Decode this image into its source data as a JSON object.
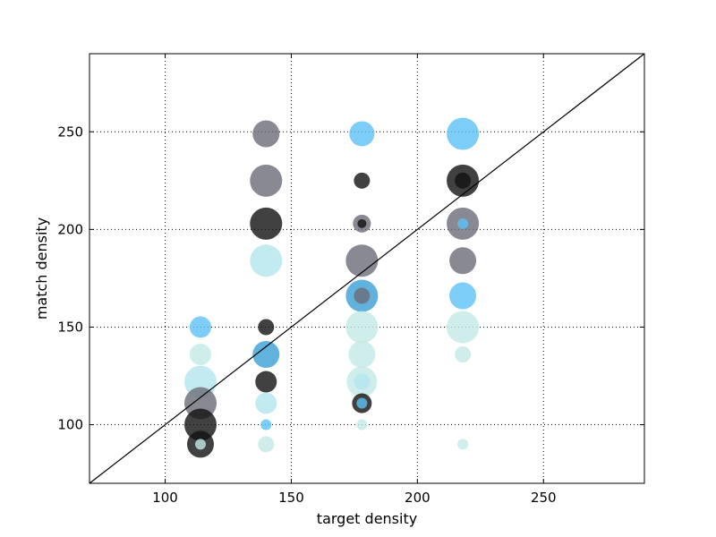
{
  "chart_data": {
    "type": "scatter",
    "title": "",
    "xlabel": "target density",
    "ylabel": "match density",
    "xlim": [
      70,
      290
    ],
    "ylim": [
      70,
      290
    ],
    "xticks": [
      100,
      150,
      200,
      250
    ],
    "yticks": [
      100,
      150,
      200,
      250
    ],
    "xtick_labels": [
      "100",
      "150",
      "200",
      "250"
    ],
    "ytick_labels": [
      "100",
      "150",
      "200",
      "250"
    ],
    "grid": true,
    "reference_line": {
      "from": [
        70,
        70
      ],
      "to": [
        290,
        290
      ],
      "color": "#000000"
    },
    "colors": {
      "sky": "#5bc0f5",
      "pale": "#b3e6ee",
      "mint": "#c2e8e6",
      "gray": "#6b6b78",
      "black": "#111111",
      "steel": "#3a9fd4"
    },
    "points": [
      {
        "x": 114,
        "y": 150,
        "size": 12,
        "color": "sky"
      },
      {
        "x": 114,
        "y": 136,
        "size": 12,
        "color": "mint"
      },
      {
        "x": 114,
        "y": 122,
        "size": 18,
        "color": "pale"
      },
      {
        "x": 114,
        "y": 111,
        "size": 18,
        "color": "gray"
      },
      {
        "x": 114,
        "y": 100,
        "size": 18,
        "color": "black"
      },
      {
        "x": 114,
        "y": 90,
        "size": 15,
        "color": "black"
      },
      {
        "x": 114,
        "y": 90,
        "size": 6,
        "color": "mint"
      },
      {
        "x": 140,
        "y": 249,
        "size": 15,
        "color": "gray"
      },
      {
        "x": 140,
        "y": 225,
        "size": 18,
        "color": "gray"
      },
      {
        "x": 140,
        "y": 203,
        "size": 18,
        "color": "black"
      },
      {
        "x": 140,
        "y": 184,
        "size": 18,
        "color": "pale"
      },
      {
        "x": 140,
        "y": 150,
        "size": 9,
        "color": "black"
      },
      {
        "x": 140,
        "y": 136,
        "size": 15,
        "color": "steel"
      },
      {
        "x": 140,
        "y": 122,
        "size": 12,
        "color": "black"
      },
      {
        "x": 140,
        "y": 111,
        "size": 12,
        "color": "pale"
      },
      {
        "x": 140,
        "y": 100,
        "size": 6,
        "color": "sky"
      },
      {
        "x": 140,
        "y": 90,
        "size": 9,
        "color": "mint"
      },
      {
        "x": 178,
        "y": 249,
        "size": 14,
        "color": "sky"
      },
      {
        "x": 178,
        "y": 225,
        "size": 9,
        "color": "black"
      },
      {
        "x": 178,
        "y": 203,
        "size": 10,
        "color": "gray"
      },
      {
        "x": 178,
        "y": 203,
        "size": 5,
        "color": "black"
      },
      {
        "x": 178,
        "y": 184,
        "size": 18,
        "color": "gray"
      },
      {
        "x": 178,
        "y": 166,
        "size": 18,
        "color": "steel"
      },
      {
        "x": 178,
        "y": 166,
        "size": 9,
        "color": "gray"
      },
      {
        "x": 178,
        "y": 150,
        "size": 18,
        "color": "mint"
      },
      {
        "x": 178,
        "y": 136,
        "size": 15,
        "color": "mint"
      },
      {
        "x": 178,
        "y": 122,
        "size": 17,
        "color": "mint"
      },
      {
        "x": 178,
        "y": 122,
        "size": 9,
        "color": "pale"
      },
      {
        "x": 178,
        "y": 111,
        "size": 11,
        "color": "black"
      },
      {
        "x": 178,
        "y": 111,
        "size": 6,
        "color": "sky"
      },
      {
        "x": 178,
        "y": 100,
        "size": 6,
        "color": "mint"
      },
      {
        "x": 218,
        "y": 249,
        "size": 18,
        "color": "sky"
      },
      {
        "x": 218,
        "y": 225,
        "size": 18,
        "color": "black"
      },
      {
        "x": 218,
        "y": 225,
        "size": 9,
        "color": "black"
      },
      {
        "x": 218,
        "y": 203,
        "size": 18,
        "color": "gray"
      },
      {
        "x": 218,
        "y": 203,
        "size": 6,
        "color": "sky"
      },
      {
        "x": 218,
        "y": 184,
        "size": 15,
        "color": "gray"
      },
      {
        "x": 218,
        "y": 166,
        "size": 15,
        "color": "sky"
      },
      {
        "x": 218,
        "y": 150,
        "size": 18,
        "color": "mint"
      },
      {
        "x": 218,
        "y": 136,
        "size": 9,
        "color": "mint"
      },
      {
        "x": 218,
        "y": 90,
        "size": 6,
        "color": "mint"
      }
    ]
  }
}
